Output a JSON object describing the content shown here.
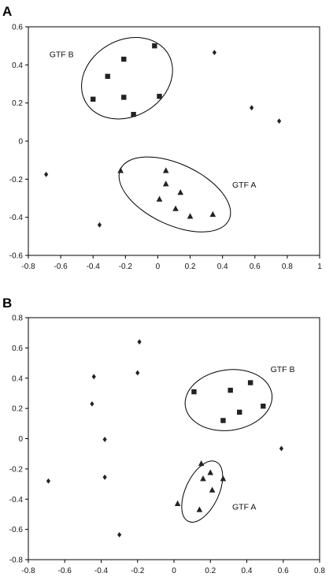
{
  "chart_data": [
    {
      "type": "scatter",
      "panel_label": "A",
      "xlim": [
        -0.8,
        1
      ],
      "ylim": [
        -0.6,
        0.6
      ],
      "xticks": [
        -0.8,
        -0.6,
        -0.4,
        -0.2,
        0,
        0.2,
        0.4,
        0.6,
        0.8,
        1
      ],
      "xtick_labels": [
        "-0.8",
        "-0.6",
        "-0.4",
        "-0.2",
        "0",
        "0.2",
        "0.4",
        "0.6",
        "0.8",
        "1"
      ],
      "yticks": [
        -0.6,
        -0.4,
        -0.2,
        0,
        0.2,
        0.4,
        0.6
      ],
      "ytick_labels": [
        "-0.6",
        "-0.4",
        "-0.2",
        "0",
        "0.2",
        "0.4",
        "0.6"
      ],
      "grid": false,
      "series": [
        {
          "marker": "square",
          "points": [
            [
              -0.4,
              0.22
            ],
            [
              -0.31,
              0.34
            ],
            [
              -0.21,
              0.43
            ],
            [
              -0.21,
              0.23
            ],
            [
              -0.15,
              0.14
            ],
            [
              -0.02,
              0.5
            ],
            [
              0.01,
              0.235
            ]
          ]
        },
        {
          "marker": "triangle",
          "points": [
            [
              -0.23,
              -0.155
            ],
            [
              0.05,
              -0.155
            ],
            [
              0.05,
              -0.225
            ],
            [
              0.14,
              -0.27
            ],
            [
              0.01,
              -0.305
            ],
            [
              0.11,
              -0.355
            ],
            [
              0.2,
              -0.395
            ],
            [
              0.34,
              -0.385
            ]
          ]
        },
        {
          "marker": "diamond",
          "points": [
            [
              -0.69,
              -0.175
            ],
            [
              -0.36,
              -0.44
            ],
            [
              0.35,
              0.465
            ],
            [
              0.58,
              0.175
            ],
            [
              0.75,
              0.105
            ]
          ]
        }
      ],
      "annotations": [
        {
          "text": "GTF B",
          "x": -0.67,
          "y": 0.44
        },
        {
          "text": "GTF A",
          "x": 0.46,
          "y": -0.245
        }
      ],
      "ellipses": [
        {
          "label": "GTF B",
          "cx": -0.19,
          "cy": 0.33,
          "rx": 0.295,
          "ry": 0.2,
          "rotate": -30
        },
        {
          "label": "GTF A",
          "cx": 0.105,
          "cy": -0.28,
          "rx": 0.37,
          "ry": 0.16,
          "rotate": 25
        }
      ]
    },
    {
      "type": "scatter",
      "panel_label": "B",
      "xlim": [
        -0.8,
        0.8
      ],
      "ylim": [
        -0.8,
        0.8
      ],
      "xticks": [
        -0.8,
        -0.6,
        -0.4,
        -0.2,
        0,
        0.2,
        0.4,
        0.6,
        0.8
      ],
      "xtick_labels": [
        "-0.8",
        "-0.6",
        "-0.4",
        "-0.2",
        "0",
        "0.2",
        "0.4",
        "0.6",
        "0.8"
      ],
      "yticks": [
        -0.8,
        -0.6,
        -0.4,
        -0.2,
        0,
        0.2,
        0.4,
        0.6,
        0.8
      ],
      "ytick_labels": [
        "-0.8",
        "-0.6",
        "-0.4",
        "-0.2",
        "0",
        "0.2",
        "0.4",
        "0.6",
        "0.8"
      ],
      "grid": false,
      "series": [
        {
          "marker": "square",
          "points": [
            [
              0.11,
              0.31
            ],
            [
              0.31,
              0.32
            ],
            [
              0.42,
              0.37
            ],
            [
              0.36,
              0.175
            ],
            [
              0.49,
              0.215
            ],
            [
              0.27,
              0.12
            ]
          ]
        },
        {
          "marker": "triangle",
          "points": [
            [
              0.15,
              -0.165
            ],
            [
              0.2,
              -0.225
            ],
            [
              0.16,
              -0.265
            ],
            [
              0.27,
              -0.265
            ],
            [
              0.21,
              -0.34
            ],
            [
              0.02,
              -0.43
            ],
            [
              0.14,
              -0.47
            ]
          ]
        },
        {
          "marker": "diamond",
          "points": [
            [
              -0.19,
              0.64
            ],
            [
              -0.2,
              0.435
            ],
            [
              -0.44,
              0.41
            ],
            [
              -0.45,
              0.23
            ],
            [
              -0.38,
              -0.005
            ],
            [
              -0.38,
              -0.255
            ],
            [
              -0.69,
              -0.28
            ],
            [
              -0.3,
              -0.635
            ],
            [
              0.59,
              -0.065
            ]
          ]
        }
      ],
      "annotations": [
        {
          "text": "GTF B",
          "x": 0.53,
          "y": 0.44
        },
        {
          "text": "GTF A",
          "x": 0.32,
          "y": -0.47
        }
      ],
      "ellipses": [
        {
          "label": "GTF B",
          "cx": 0.3,
          "cy": 0.255,
          "rx": 0.24,
          "ry": 0.2,
          "rotate": -8
        },
        {
          "label": "GTF A",
          "cx": 0.155,
          "cy": -0.35,
          "rx": 0.18,
          "ry": 0.11,
          "rotate": -65
        }
      ]
    }
  ]
}
